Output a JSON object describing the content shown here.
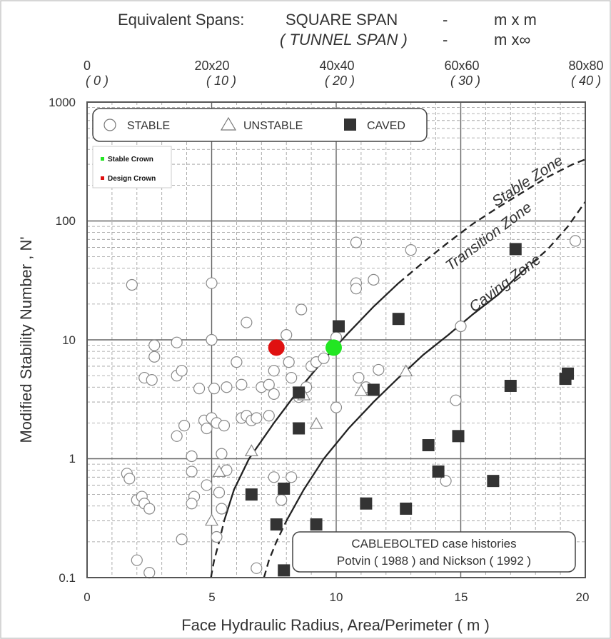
{
  "chart_data": {
    "type": "scatter",
    "title_line1_prefix": "Equivalent Spans:",
    "title_line1_value": "SQUARE SPAN",
    "title_line1_sep": "-",
    "title_line1_unit": "m x m",
    "title_line2_value": "( TUNNEL  SPAN )",
    "title_line2_sep": "-",
    "title_line2_unit": "m x∞",
    "xlabel": "Face Hydraulic Radius, Area/Perimeter   ( m )",
    "ylabel": "Modified Stability Number , N'",
    "xlim": [
      0,
      20
    ],
    "ylim": [
      0.1,
      1000
    ],
    "yscale": "log",
    "grid": true,
    "x_ticks": [
      "0",
      "5",
      "10",
      "15",
      "20"
    ],
    "y_ticks": [
      "0.1",
      "1",
      "10",
      "100",
      "1000"
    ],
    "top_ticks": [
      {
        "square": "0",
        "tunnel": "( 0 )"
      },
      {
        "square": "20x20",
        "tunnel": "( 10 )"
      },
      {
        "square": "40x40",
        "tunnel": "( 20 )"
      },
      {
        "square": "60x60",
        "tunnel": "( 30 )"
      },
      {
        "square": "80x80",
        "tunnel": "( 40 )"
      }
    ],
    "legend": {
      "stable": "STABLE",
      "unstable": "UNSTABLE",
      "caved": "CAVED",
      "stable_crown": "Stable Crown",
      "design_crown": "Design Crown"
    },
    "zones": [
      "Stable Zone",
      "Transition Zone",
      "Caving Zone"
    ],
    "note_line1": "CABLEBOLTED case histories",
    "note_line2": "Potvin ( 1988 ) and Nickson ( 1992 )",
    "colors": {
      "stable_crown": "#22e622",
      "design_crown": "#e01010",
      "caved": "#333333",
      "grid": "#9a9a9a"
    },
    "series": [
      {
        "name": "STABLE",
        "marker": "circle-open",
        "points": [
          [
            1.6,
            0.75
          ],
          [
            1.7,
            0.68
          ],
          [
            1.8,
            29
          ],
          [
            2.0,
            0.45
          ],
          [
            2.2,
            0.48
          ],
          [
            2.3,
            0.42
          ],
          [
            2.5,
            0.38
          ],
          [
            2.3,
            4.8
          ],
          [
            2.6,
            4.6
          ],
          [
            2.7,
            9
          ],
          [
            2.7,
            7.2
          ],
          [
            2.0,
            0.14
          ],
          [
            2.5,
            0.11
          ],
          [
            3.6,
            9.5
          ],
          [
            3.6,
            5.0
          ],
          [
            3.8,
            5.5
          ],
          [
            3.6,
            1.55
          ],
          [
            3.9,
            1.9
          ],
          [
            4.2,
            1.05
          ],
          [
            4.2,
            0.78
          ],
          [
            4.3,
            0.48
          ],
          [
            4.2,
            0.42
          ],
          [
            3.8,
            0.21
          ],
          [
            4.5,
            3.9
          ],
          [
            4.7,
            2.1
          ],
          [
            4.8,
            1.8
          ],
          [
            4.8,
            0.6
          ],
          [
            5.0,
            10
          ],
          [
            5.0,
            30
          ],
          [
            5.1,
            3.9
          ],
          [
            5.0,
            2.2
          ],
          [
            5.2,
            2.0
          ],
          [
            5.2,
            0.22
          ],
          [
            5.4,
            1.1
          ],
          [
            5.5,
            1.9
          ],
          [
            5.6,
            0.8
          ],
          [
            5.3,
            0.52
          ],
          [
            5.4,
            0.38
          ],
          [
            5.6,
            4.0
          ],
          [
            6.0,
            6.5
          ],
          [
            6.2,
            4.2
          ],
          [
            6.2,
            2.2
          ],
          [
            6.4,
            2.3
          ],
          [
            6.4,
            14
          ],
          [
            6.6,
            2.1
          ],
          [
            6.8,
            2.2
          ],
          [
            6.8,
            0.12
          ],
          [
            7.0,
            4.0
          ],
          [
            7.3,
            4.2
          ],
          [
            7.3,
            2.3
          ],
          [
            7.5,
            0.7
          ],
          [
            7.5,
            5.5
          ],
          [
            7.5,
            3.5
          ],
          [
            7.8,
            0.45
          ],
          [
            8.0,
            11
          ],
          [
            8.1,
            6.5
          ],
          [
            8.2,
            4.8
          ],
          [
            8.2,
            0.7
          ],
          [
            8.5,
            3.3
          ],
          [
            8.6,
            18
          ],
          [
            8.8,
            4.0
          ],
          [
            9.0,
            6.0
          ],
          [
            9.2,
            6.5
          ],
          [
            9.5,
            7.0
          ],
          [
            10.0,
            2.7
          ],
          [
            10.0,
            10.5
          ],
          [
            10.8,
            30
          ],
          [
            10.8,
            27
          ],
          [
            10.8,
            66
          ],
          [
            10.9,
            4.8
          ],
          [
            11.2,
            4.0
          ],
          [
            11.5,
            32
          ],
          [
            11.7,
            5.6
          ],
          [
            13.0,
            57
          ],
          [
            14.4,
            0.65
          ],
          [
            14.8,
            3.1
          ],
          [
            15.0,
            13
          ],
          [
            19.6,
            68
          ]
        ]
      },
      {
        "name": "UNSTABLE",
        "marker": "triangle-open",
        "points": [
          [
            5.0,
            0.3
          ],
          [
            5.3,
            0.77
          ],
          [
            6.6,
            1.15
          ],
          [
            8.7,
            3.4
          ],
          [
            9.2,
            1.95
          ],
          [
            11.0,
            3.7
          ],
          [
            12.8,
            5.4
          ]
        ]
      },
      {
        "name": "CAVED",
        "marker": "square-filled",
        "points": [
          [
            6.6,
            0.5
          ],
          [
            7.6,
            0.28
          ],
          [
            7.9,
            0.56
          ],
          [
            7.9,
            0.115
          ],
          [
            8.5,
            3.6
          ],
          [
            8.5,
            1.8
          ],
          [
            9.2,
            0.28
          ],
          [
            10.1,
            13
          ],
          [
            11.2,
            0.42
          ],
          [
            11.5,
            3.8
          ],
          [
            12.5,
            15
          ],
          [
            12.8,
            0.38
          ],
          [
            13.7,
            1.3
          ],
          [
            14.1,
            0.78
          ],
          [
            14.9,
            1.55
          ],
          [
            16.3,
            0.65
          ],
          [
            17.0,
            4.1
          ],
          [
            17.2,
            58
          ],
          [
            19.2,
            4.7
          ],
          [
            19.3,
            5.2
          ]
        ]
      },
      {
        "name": "Stable Crown",
        "marker": "circle-filled-green",
        "points": [
          [
            9.9,
            8.6
          ]
        ]
      },
      {
        "name": "Design Crown",
        "marker": "circle-filled-red",
        "points": [
          [
            7.6,
            8.6
          ]
        ]
      }
    ],
    "boundary_curves": [
      {
        "segments": [
          {
            "style": "dashed",
            "points": [
              [
                4.97,
                0.1
              ],
              [
                5.1,
                0.14
              ],
              [
                5.3,
                0.2
              ],
              [
                5.5,
                0.3
              ]
            ]
          },
          {
            "style": "solid",
            "points": [
              [
                5.5,
                0.3
              ],
              [
                5.9,
                0.55
              ],
              [
                6.5,
                1.0
              ],
              [
                7.5,
                2.0
              ],
              [
                8.5,
                3.8
              ],
              [
                9.5,
                6.8
              ],
              [
                10.5,
                11.5
              ],
              [
                11.5,
                19
              ],
              [
                12.5,
                30
              ]
            ]
          },
          {
            "style": "dashed",
            "points": [
              [
                12.5,
                30
              ],
              [
                13.5,
                45
              ],
              [
                14.5,
                66
              ],
              [
                15.5,
                95
              ],
              [
                16.5,
                130
              ],
              [
                17.5,
                175
              ],
              [
                18.5,
                235
              ],
              [
                19.5,
                300
              ],
              [
                20,
                330
              ]
            ]
          }
        ]
      },
      {
        "segments": [
          {
            "style": "dashed",
            "points": [
              [
                7.1,
                0.1
              ],
              [
                7.3,
                0.14
              ],
              [
                7.6,
                0.2
              ],
              [
                8.0,
                0.3
              ]
            ]
          },
          {
            "style": "solid",
            "points": [
              [
                8.0,
                0.3
              ],
              [
                8.7,
                0.55
              ],
              [
                9.5,
                1.0
              ],
              [
                10.5,
                1.8
              ],
              [
                11.5,
                3.0
              ],
              [
                12.5,
                4.8
              ],
              [
                13.5,
                7.5
              ],
              [
                14.5,
                11
              ],
              [
                15.5,
                16.5
              ],
              [
                16.5,
                24
              ],
              [
                17.5,
                38
              ]
            ]
          },
          {
            "style": "dashed",
            "points": [
              [
                17.5,
                38
              ],
              [
                18.5,
                58
              ],
              [
                19.3,
                90
              ],
              [
                20,
                145
              ]
            ]
          }
        ]
      }
    ]
  }
}
